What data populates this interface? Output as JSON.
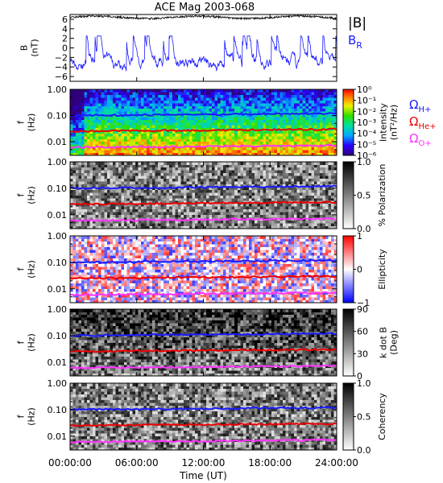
{
  "title": "ACE Mag 2003-068",
  "colors": {
    "b_mag": "#000000",
    "b_r": "#1a1aff",
    "omega_h": "#1a1aff",
    "omega_he": "#ee0000",
    "omega_o": "#ff33ff",
    "axis": "#000000"
  },
  "chart_data": [
    {
      "type": "line",
      "panel": "field",
      "ylabel": "B\n(nT)",
      "ylim": [
        -7,
        7
      ],
      "yticks": [
        -6,
        -4,
        -2,
        0,
        2,
        4,
        6
      ],
      "xlim": [
        "00:00:00",
        "24:00:00"
      ],
      "series": [
        {
          "name": "|B|",
          "color": "#000000",
          "level": 6.5,
          "range": [
            5.5,
            6.8
          ]
        },
        {
          "name": "B_R",
          "color": "#1a1aff",
          "level": -3.5,
          "range": [
            -6.2,
            2.5
          ]
        }
      ],
      "legend": [
        {
          "text": "|B|",
          "color": "#000000"
        },
        {
          "text": "B",
          "sub": "R",
          "color": "#1a1aff"
        }
      ]
    },
    {
      "type": "heatmap",
      "panel": "intensity",
      "ylabel": "f\n(Hz)",
      "yscale": "log",
      "ylim": [
        0.003,
        1.0
      ],
      "yticks": [
        "1.00",
        "0.10",
        "0.01"
      ],
      "colorbar": {
        "label": "Intensity\n(nT²/Hz)",
        "scale": "log",
        "ticks": [
          "10⁰",
          "10⁻¹",
          "10⁻²",
          "10⁻³",
          "10⁻⁴",
          "10⁻⁵",
          "10⁻⁶"
        ],
        "colormap": "rainbow"
      },
      "gyro_legend": [
        {
          "text": "Ω",
          "sub": "H+",
          "color": "#1a1aff"
        },
        {
          "text": "Ω",
          "sub": "He+",
          "color": "#ee0000"
        },
        {
          "text": "Ω",
          "sub": "O+",
          "color": "#ff33ff"
        }
      ]
    },
    {
      "type": "heatmap",
      "panel": "polarization",
      "ylabel": "f\n(Hz)",
      "yscale": "log",
      "ylim": [
        0.003,
        1.0
      ],
      "yticks": [
        "1.00",
        "0.10",
        "0.01"
      ],
      "colorbar": {
        "label": "% Polarization",
        "ticks": [
          "1.0",
          "0.5",
          "0.0"
        ],
        "colormap": "gray"
      }
    },
    {
      "type": "heatmap",
      "panel": "ellipticity",
      "ylabel": "f\n(Hz)",
      "yscale": "log",
      "ylim": [
        0.003,
        1.0
      ],
      "yticks": [
        "1.00",
        "0.10",
        "0.01"
      ],
      "colorbar": {
        "label": "Ellipticity",
        "ticks": [
          "1",
          "0",
          "−1"
        ],
        "colormap": "bwr"
      }
    },
    {
      "type": "heatmap",
      "panel": "kdotb",
      "ylabel": "f\n(Hz)",
      "yscale": "log",
      "ylim": [
        0.003,
        1.0
      ],
      "yticks": [
        "1.00",
        "0.10",
        "0.01"
      ],
      "colorbar": {
        "label": "k dot B\n(Deg)",
        "ticks": [
          "90",
          "60",
          "30",
          "0"
        ],
        "colormap": "gray"
      }
    },
    {
      "type": "heatmap",
      "panel": "coherency",
      "ylabel": "f\n(Hz)",
      "yscale": "log",
      "ylim": [
        0.003,
        1.0
      ],
      "yticks": [
        "1.00",
        "0.10",
        "0.01"
      ],
      "colorbar": {
        "label": "Coherency",
        "ticks": [
          "1.0",
          "0.5",
          "0.0"
        ],
        "colormap": "gray"
      },
      "xticks": [
        "00:00:00",
        "06:00:00",
        "12:00:00",
        "18:00:00",
        "24:00:00"
      ],
      "xlabel": "Time (UT)"
    }
  ],
  "gyrofrequencies": {
    "H+": {
      "f_hz": 0.1,
      "color": "#1a1aff"
    },
    "He+": {
      "f_hz": 0.025,
      "color": "#ee0000"
    },
    "O+": {
      "f_hz": 0.006,
      "color": "#ff33ff"
    }
  }
}
